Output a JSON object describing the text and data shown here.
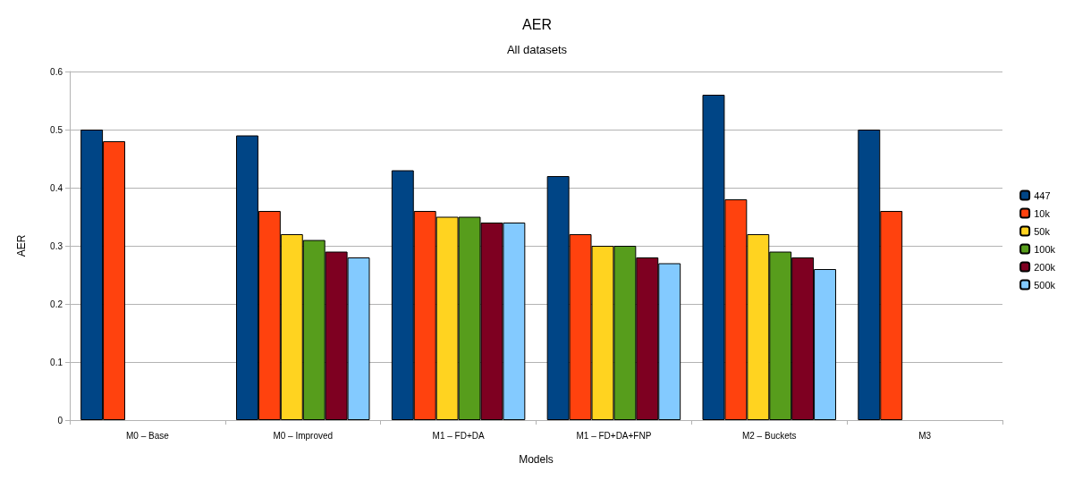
{
  "chart_data": {
    "type": "bar",
    "title": "AER",
    "subtitle": "All datasets",
    "xlabel": "Models",
    "ylabel": "AER",
    "categories": [
      "M0 – Base",
      "M0 – Improved",
      "M1 – FD+DA",
      "M1 – FD+DA+FNP",
      "M2 – Buckets",
      "M3"
    ],
    "series": [
      {
        "name": "447",
        "color": "#004586",
        "values": [
          0.5,
          0.49,
          0.43,
          0.42,
          0.56,
          0.5
        ]
      },
      {
        "name": "10k",
        "color": "#ff420e",
        "values": [
          0.48,
          0.36,
          0.36,
          0.32,
          0.38,
          0.36
        ]
      },
      {
        "name": "50k",
        "color": "#ffd320",
        "values": [
          null,
          0.32,
          0.35,
          0.3,
          0.32,
          null
        ]
      },
      {
        "name": "100k",
        "color": "#579d1c",
        "values": [
          null,
          0.31,
          0.35,
          0.3,
          0.29,
          null
        ]
      },
      {
        "name": "200k",
        "color": "#7e0021",
        "values": [
          null,
          0.29,
          0.34,
          0.28,
          0.28,
          null
        ]
      },
      {
        "name": "500k",
        "color": "#83caff",
        "values": [
          null,
          0.28,
          0.34,
          0.27,
          0.26,
          null
        ]
      }
    ],
    "ylim": [
      0,
      0.6
    ],
    "yticks": [
      0,
      0.1,
      0.2,
      0.3,
      0.4,
      0.5,
      0.6
    ],
    "grid": "y",
    "legend": "right"
  }
}
